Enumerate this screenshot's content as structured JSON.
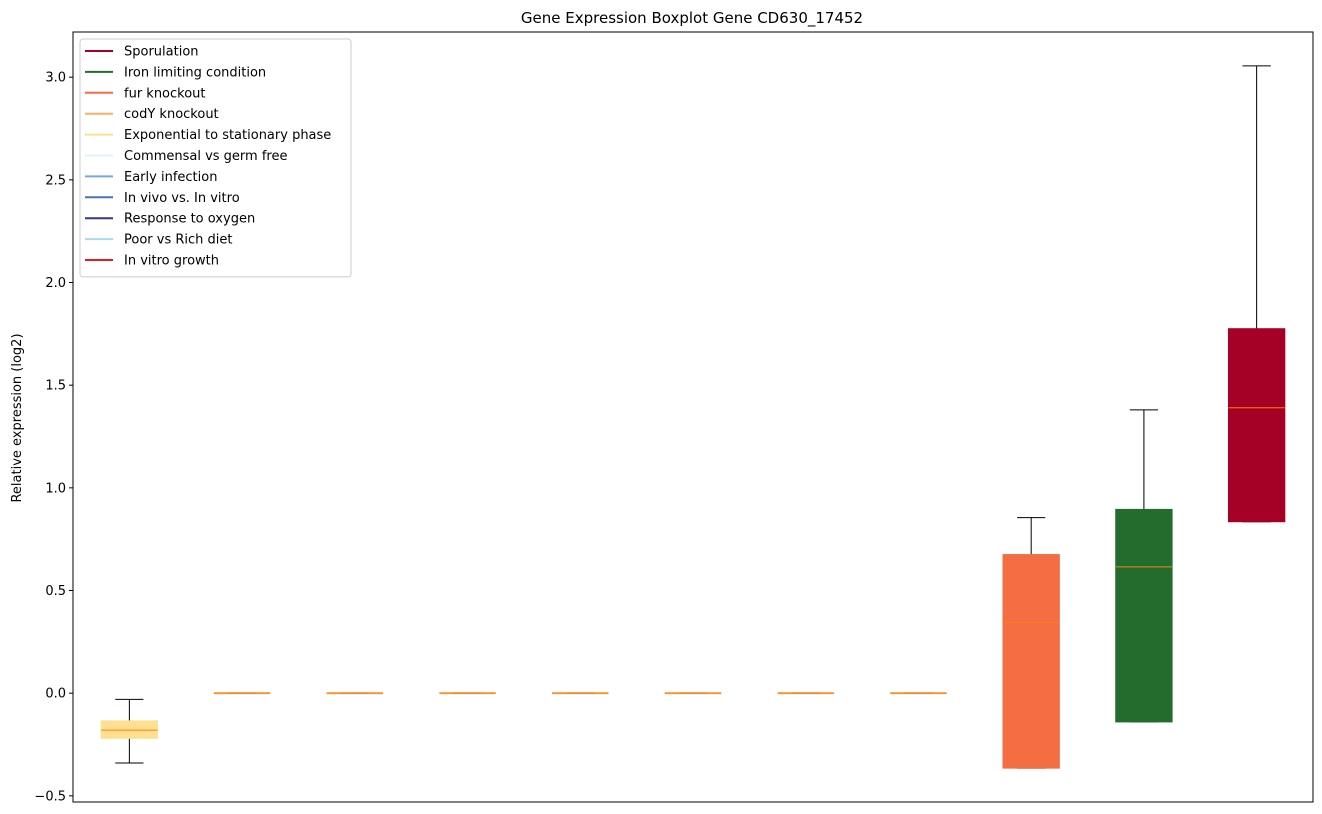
{
  "chart_data": {
    "type": "boxplot",
    "title": "Gene Expression Boxplot Gene CD630_17452",
    "xlabel": "",
    "ylabel": "Relative expression (log2)",
    "ylim": [
      -0.53,
      3.22
    ],
    "yticks": [
      -0.5,
      0.0,
      0.5,
      1.0,
      1.5,
      2.0,
      2.5,
      3.0
    ],
    "ytick_labels": [
      "−0.5",
      "0.0",
      "0.5",
      "1.0",
      "1.5",
      "2.0",
      "2.5",
      "3.0"
    ],
    "grid": false,
    "legend_position": "upper-left",
    "legend": [
      {
        "label": "Sporulation",
        "color": "#a50026"
      },
      {
        "label": "Iron limiting condition",
        "color": "#226d2e"
      },
      {
        "label": "fur knockout",
        "color": "#f46d43"
      },
      {
        "label": "codY knockout",
        "color": "#fdae61"
      },
      {
        "label": "Exponential to stationary phase",
        "color": "#fee090"
      },
      {
        "label": "Commensal vs germ free",
        "color": "#e0f3f8"
      },
      {
        "label": "Early infection",
        "color": "#74add1"
      },
      {
        "label": "In vivo vs. In vitro",
        "color": "#4575b4"
      },
      {
        "label": "Response to oxygen",
        "color": "#313695"
      },
      {
        "label": "Poor vs Rich diet",
        "color": "#abd9e9"
      },
      {
        "label": "In vitro growth",
        "color": "#e41a1c"
      }
    ],
    "boxes": [
      {
        "color": "#fee090",
        "whislo": -0.34,
        "q1": -0.22,
        "med": -0.18,
        "q3": -0.135,
        "whishi": -0.03
      },
      {
        "color": "#fdae61",
        "whislo": 0.0,
        "q1": 0.0,
        "med": 0.0,
        "q3": 0.0,
        "whishi": 0.0
      },
      {
        "color": "#fdae61",
        "whislo": 0.0,
        "q1": 0.0,
        "med": 0.0,
        "q3": 0.0,
        "whishi": 0.0
      },
      {
        "color": "#fdae61",
        "whislo": 0.0,
        "q1": 0.0,
        "med": 0.0,
        "q3": 0.0,
        "whishi": 0.0
      },
      {
        "color": "#fdae61",
        "whislo": 0.0,
        "q1": 0.0,
        "med": 0.0,
        "q3": 0.0,
        "whishi": 0.0
      },
      {
        "color": "#fdae61",
        "whislo": 0.0,
        "q1": 0.0,
        "med": 0.0,
        "q3": 0.0,
        "whishi": 0.0
      },
      {
        "color": "#fdae61",
        "whislo": 0.0,
        "q1": 0.0,
        "med": 0.0,
        "q3": 0.0,
        "whishi": 0.0
      },
      {
        "color": "#fdae61",
        "whislo": 0.0,
        "q1": 0.0,
        "med": 0.0,
        "q3": 0.0,
        "whishi": 0.0
      },
      {
        "color": "#f46d43",
        "whislo": -0.365,
        "q1": -0.365,
        "med": 0.345,
        "q3": 0.675,
        "whishi": 0.855
      },
      {
        "color": "#226d2e",
        "whislo": -0.14,
        "q1": -0.14,
        "med": 0.615,
        "q3": 0.895,
        "whishi": 1.38
      },
      {
        "color": "#a50026",
        "whislo": 0.835,
        "q1": 0.835,
        "med": 1.39,
        "q3": 1.775,
        "whishi": 3.055
      }
    ],
    "median_color": "#ff7f0e"
  }
}
